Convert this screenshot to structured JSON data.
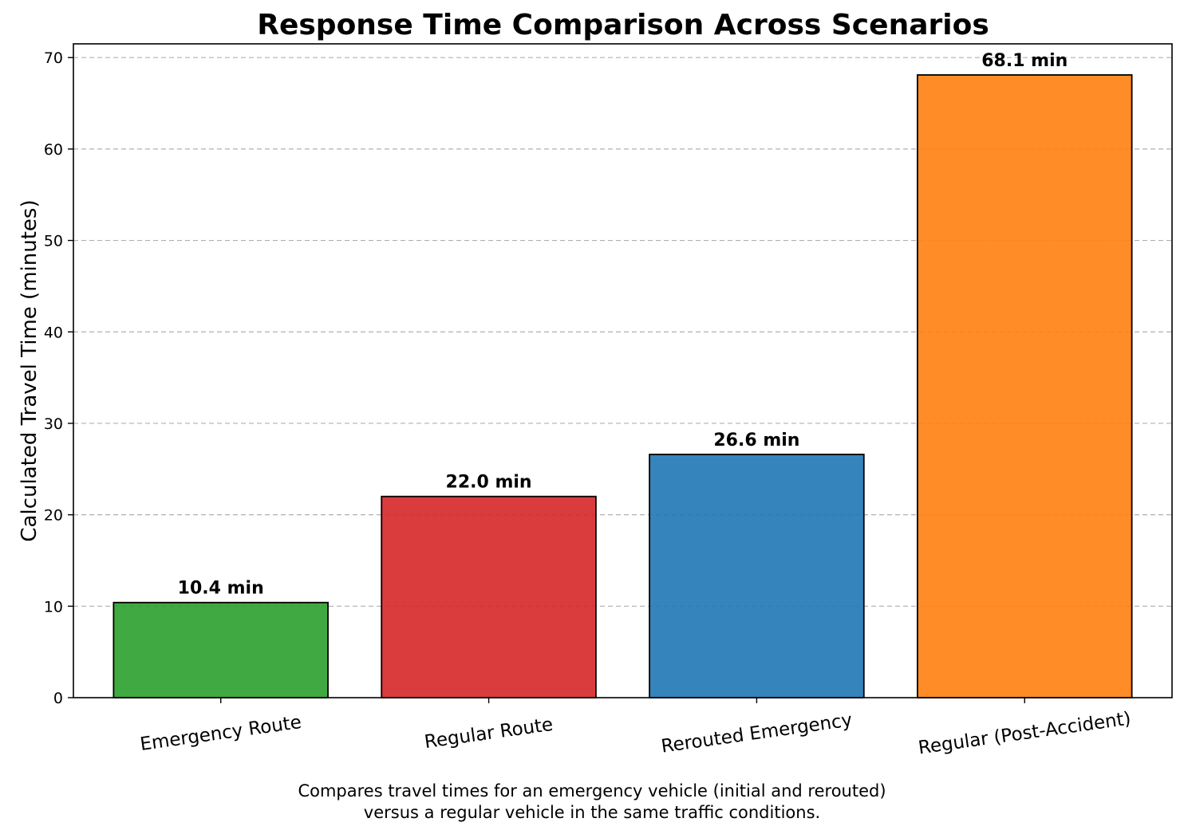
{
  "chart_data": {
    "type": "bar",
    "title": "Response Time Comparison Across Scenarios",
    "xlabel": "",
    "ylabel": "Calculated Travel Time (minutes)",
    "categories": [
      "Emergency Route",
      "Regular Route",
      "Rerouted Emergency",
      "Regular (Post-Accident)"
    ],
    "values": [
      10.4,
      22.0,
      26.6,
      68.1
    ],
    "value_labels": [
      "10.4 min",
      "22.0 min",
      "26.6 min",
      "68.1 min"
    ],
    "colors": [
      "#2ca02c",
      "#d62728",
      "#1f77b4",
      "#ff7f0e"
    ],
    "ylim": [
      0,
      71.5
    ],
    "yticks": [
      0,
      10,
      20,
      30,
      40,
      50,
      60,
      70
    ],
    "grid": "horizontal dashed",
    "legend": "none"
  },
  "caption": {
    "line1": "Compares travel times for an emergency vehicle (initial and rerouted)",
    "line2": "versus a regular vehicle in the same traffic conditions."
  }
}
